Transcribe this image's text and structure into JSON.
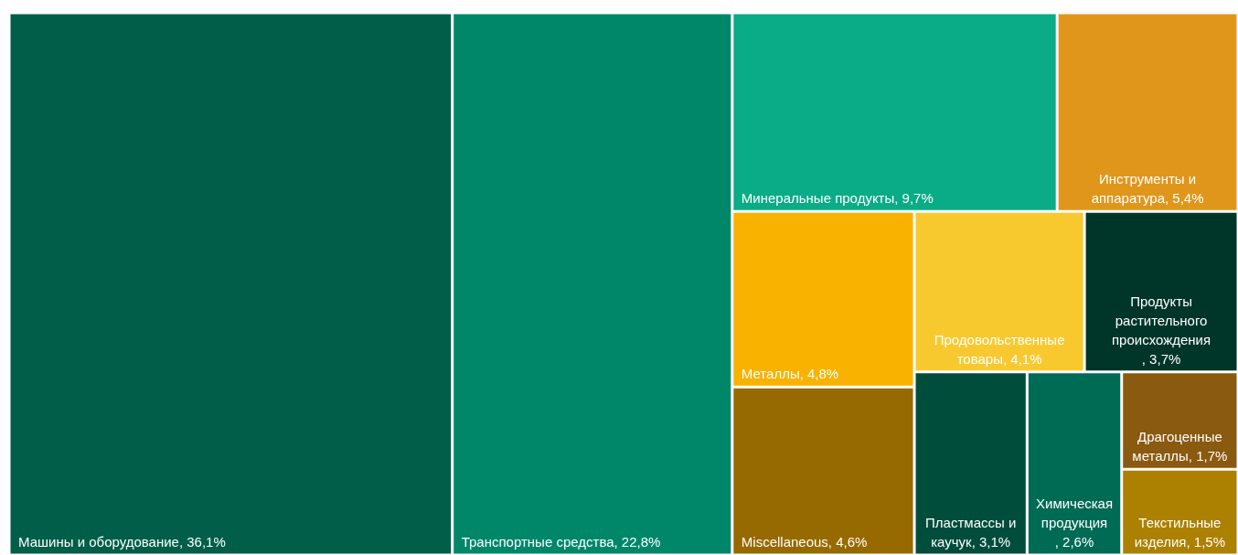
{
  "chart_data": {
    "type": "other",
    "categories": [
      "Машины и оборудование",
      "Транспортные средства",
      "Минеральные продукты",
      "Инструменты и аппаратура",
      "Металлы",
      "Miscellaneous",
      "Продовольственные товары",
      "Продукты растительного происхождения",
      "Пластмассы и каучук",
      "Химическая продукция",
      "Драгоценные металлы",
      "Текстильные изделия"
    ],
    "values": [
      36.1,
      22.8,
      9.7,
      5.4,
      4.8,
      4.6,
      4.1,
      3.7,
      3.1,
      2.6,
      1.7,
      1.5
    ],
    "value_labels": [
      ", 36,1%",
      ", 22,8%",
      ", 9,7%",
      ", 5,4%",
      ", 4,8%",
      ", 4,6%",
      ", 4,1%",
      ", 3,7%",
      ", 3,1%",
      ", 2,6%",
      ", 1,7%",
      ", 1,5%"
    ],
    "colors": [
      "#005e49",
      "#00876a",
      "#0aab87",
      "#e0961b",
      "#f9b200",
      "#976a00",
      "#f8c92f",
      "#00352a",
      "#004d3c",
      "#006b55",
      "#8a5a10",
      "#ac8000"
    ]
  }
}
